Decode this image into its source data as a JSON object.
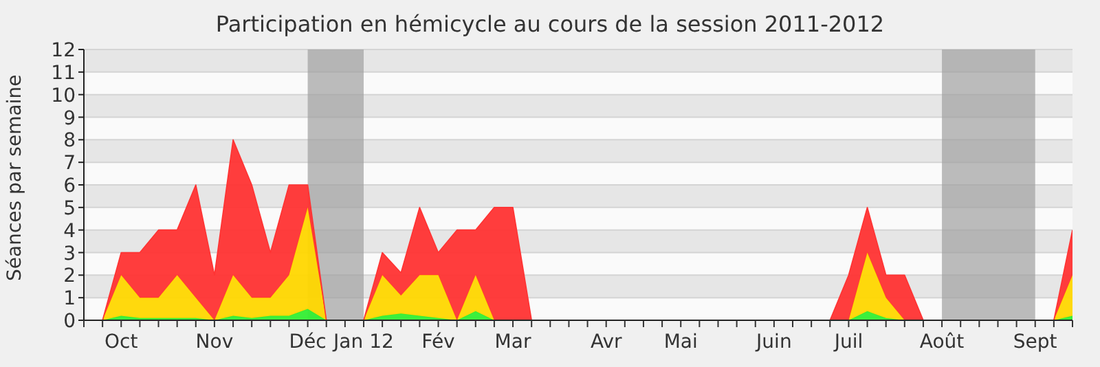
{
  "chart_data": {
    "type": "area",
    "stacked": true,
    "title": "Participation en hémicycle au cours de la session 2011-2012",
    "ylabel": "Séances par semaine",
    "categories": [
      null,
      null,
      "Oct",
      null,
      null,
      null,
      null,
      "Nov",
      null,
      null,
      null,
      null,
      "Déc",
      null,
      null,
      "Jan 12",
      null,
      null,
      null,
      "Fév",
      null,
      null,
      null,
      "Mar",
      null,
      null,
      null,
      null,
      "Avr",
      null,
      null,
      null,
      "Mai",
      null,
      null,
      null,
      null,
      "Juin",
      null,
      null,
      null,
      "Juil",
      null,
      null,
      null,
      null,
      "Août",
      null,
      null,
      null,
      null,
      "Sept",
      null,
      null
    ],
    "series": [
      {
        "color": "#33ee33",
        "values": [
          null,
          0,
          0.2,
          0.1,
          0.1,
          0.1,
          0.1,
          0,
          0.2,
          0.1,
          0.2,
          0.2,
          0.5,
          0,
          0,
          0,
          0.2,
          0.3,
          0.2,
          0.1,
          0,
          0.4,
          0,
          0,
          0,
          0,
          0,
          0,
          0,
          0,
          0,
          0,
          0,
          0,
          0,
          0,
          0,
          0,
          0,
          0,
          0,
          0,
          0.4,
          0.1,
          0,
          0,
          0,
          0,
          0,
          0,
          0,
          0,
          0,
          0.2
        ]
      },
      {
        "color": "#ffd700",
        "values": [
          null,
          0,
          1.8,
          0.9,
          0.9,
          1.9,
          0.9,
          0,
          1.8,
          0.9,
          0.8,
          1.8,
          4.5,
          0,
          0,
          0,
          1.8,
          0.8,
          1.8,
          1.9,
          0,
          1.6,
          0,
          0,
          0,
          0,
          0,
          0,
          0,
          0,
          0,
          0,
          0,
          0,
          0,
          0,
          0,
          0,
          0,
          0,
          0,
          0,
          2.6,
          0.9,
          0,
          0,
          0,
          0,
          0,
          0,
          0,
          0,
          0,
          1.8
        ]
      },
      {
        "color": "#ff3333",
        "values": [
          null,
          0,
          1,
          2,
          3,
          2,
          5,
          2,
          6,
          5,
          2,
          4,
          1,
          0,
          0,
          0,
          1,
          1,
          3,
          1,
          4,
          2,
          5,
          5,
          0,
          0,
          0,
          0,
          0,
          0,
          0,
          0,
          0,
          0,
          0,
          0,
          0,
          0,
          0,
          0,
          0,
          2,
          2,
          1,
          2,
          0,
          0,
          0,
          0,
          0,
          0,
          0,
          0,
          2
        ]
      }
    ],
    "ylim": [
      0,
      12
    ],
    "yticks": [
      0,
      1,
      2,
      3,
      4,
      5,
      6,
      7,
      8,
      9,
      10,
      11,
      12
    ],
    "grid": "y",
    "bands": [
      {
        "axis": "x",
        "from": "Déc",
        "to": "Jan 12",
        "color": "#a0a0a0"
      },
      {
        "axis": "x",
        "from": "Août",
        "to": "Sept",
        "color": "#a0a0a0"
      }
    ]
  }
}
